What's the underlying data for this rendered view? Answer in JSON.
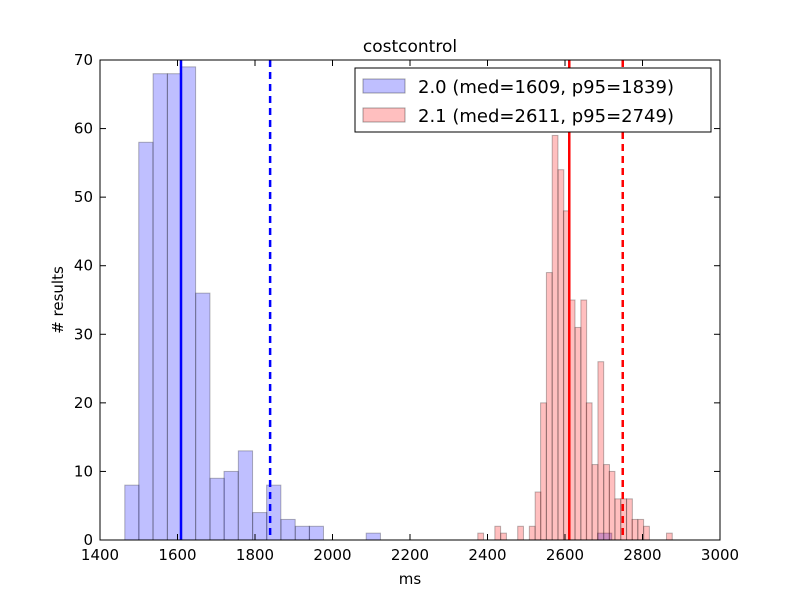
{
  "chart_data": {
    "type": "bar",
    "title": "costcontrol",
    "xlabel": "ms",
    "ylabel": "# results",
    "xlim": [
      1400,
      3000
    ],
    "ylim": [
      0,
      70
    ],
    "xticks": [
      1400,
      1600,
      1800,
      2000,
      2200,
      2400,
      2600,
      2800,
      3000
    ],
    "yticks": [
      0,
      10,
      20,
      30,
      40,
      50,
      60,
      70
    ],
    "grid": false,
    "legend_position": "top-right",
    "series": [
      {
        "name": "2.0 (med=1609, p95=1839)",
        "color": "#0000ff",
        "alpha": 0.25,
        "bin_width": 36.7,
        "bins": [
          {
            "x": 1464,
            "y": 8
          },
          {
            "x": 1500,
            "y": 58
          },
          {
            "x": 1537,
            "y": 68
          },
          {
            "x": 1574,
            "y": 68
          },
          {
            "x": 1610,
            "y": 69
          },
          {
            "x": 1647,
            "y": 36
          },
          {
            "x": 1684,
            "y": 9
          },
          {
            "x": 1720,
            "y": 10
          },
          {
            "x": 1757,
            "y": 13
          },
          {
            "x": 1794,
            "y": 4
          },
          {
            "x": 1830,
            "y": 8
          },
          {
            "x": 1867,
            "y": 3
          },
          {
            "x": 1904,
            "y": 2
          },
          {
            "x": 1940,
            "y": 2
          },
          {
            "x": 2087,
            "y": 1
          },
          {
            "x": 2684,
            "y": 1
          }
        ],
        "median": 1609,
        "p95": 1839
      },
      {
        "name": "2.1 (med=2611, p95=2749)",
        "color": "#ff0000",
        "alpha": 0.25,
        "bin_width": 14.8,
        "bins": [
          {
            "x": 2375,
            "y": 1
          },
          {
            "x": 2404,
            "y": 0
          },
          {
            "x": 2419,
            "y": 2
          },
          {
            "x": 2434,
            "y": 1
          },
          {
            "x": 2478,
            "y": 2
          },
          {
            "x": 2508,
            "y": 2
          },
          {
            "x": 2523,
            "y": 7
          },
          {
            "x": 2537,
            "y": 20
          },
          {
            "x": 2552,
            "y": 39
          },
          {
            "x": 2567,
            "y": 59
          },
          {
            "x": 2582,
            "y": 54
          },
          {
            "x": 2596,
            "y": 48
          },
          {
            "x": 2611,
            "y": 35
          },
          {
            "x": 2626,
            "y": 31
          },
          {
            "x": 2641,
            "y": 35
          },
          {
            "x": 2655,
            "y": 20
          },
          {
            "x": 2670,
            "y": 11
          },
          {
            "x": 2685,
            "y": 26
          },
          {
            "x": 2700,
            "y": 11
          },
          {
            "x": 2714,
            "y": 10
          },
          {
            "x": 2729,
            "y": 6
          },
          {
            "x": 2744,
            "y": 6
          },
          {
            "x": 2759,
            "y": 6
          },
          {
            "x": 2773,
            "y": 3
          },
          {
            "x": 2788,
            "y": 3
          },
          {
            "x": 2803,
            "y": 2
          },
          {
            "x": 2862,
            "y": 1
          }
        ],
        "median": 2611,
        "p95": 2749
      }
    ]
  }
}
